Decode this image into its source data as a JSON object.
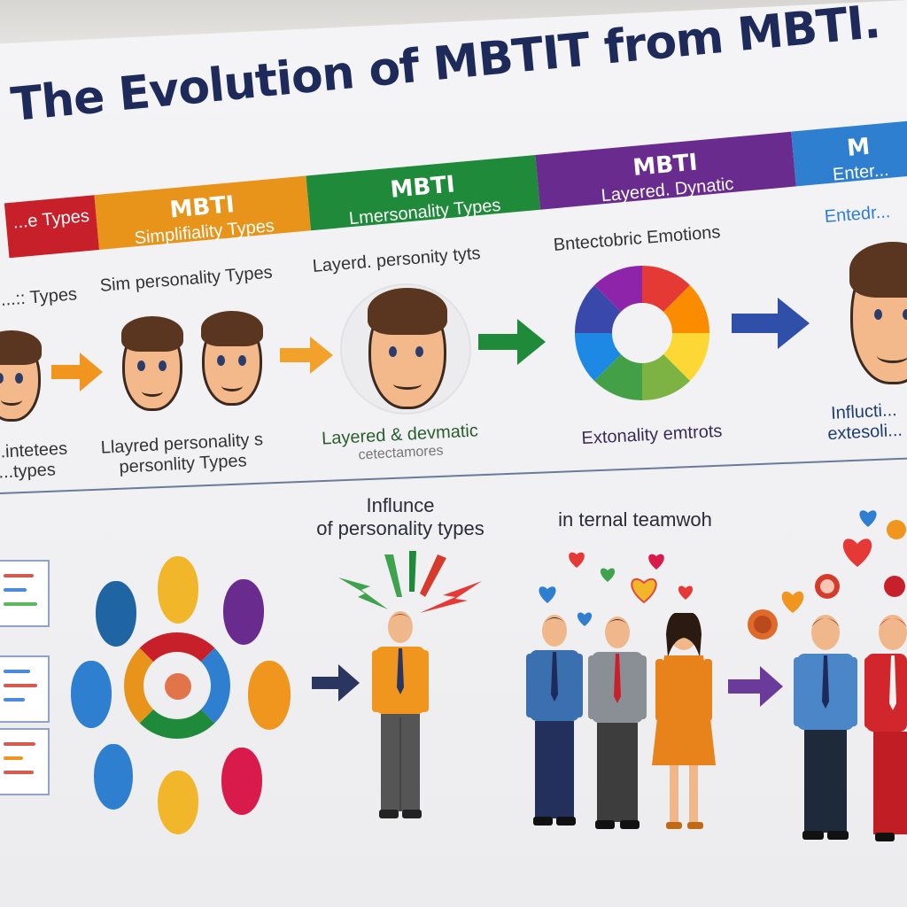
{
  "title": "The Evolution of MBTIT from MBTI.",
  "stages": [
    {
      "heading": "",
      "subheading": "...e Types",
      "color": "#c8202a"
    },
    {
      "heading": "MBTI",
      "subheading": "Simplifiality Types",
      "color": "#e8941a"
    },
    {
      "heading": "MBTI",
      "subheading": "Lmersonality Types",
      "color": "#1f8a3a"
    },
    {
      "heading": "MBTI",
      "subheading": "Layered. Dynatic",
      "color": "#6a2b8e"
    },
    {
      "heading": "M",
      "subheading": "Enter...",
      "color": "#2f7fd0"
    }
  ],
  "stage_sublabels": [
    "...:: Types",
    "Sim personality Types",
    "Layerd. personity tyts",
    "Bntectobric Emotions",
    "Entedr..."
  ],
  "stage_captions": [
    {
      "line1": "...intetees",
      "line2": "...types"
    },
    {
      "line1": "Llayred personality s",
      "line2": "personlity Types"
    },
    {
      "line1": "Layered & devmatic",
      "line2": "cetectamores"
    },
    {
      "line1": "Extonality emtrots",
      "line2": ""
    },
    {
      "line1": "Influcti...",
      "line2": "extesoli..."
    }
  ],
  "lower_labels": {
    "influence_line1": "Influnce",
    "influence_line2": "of personality types",
    "teamwork": "in ternal teamwoh"
  },
  "colors": {
    "title": "#1d2a5a",
    "red": "#c8202a",
    "orange": "#e8941a",
    "green": "#1f8a3a",
    "purple": "#6a2b8e",
    "blue": "#2f7fd0",
    "navy_arrow": "#2a3560"
  },
  "icons": [
    "arrow-right-icon",
    "color-wheel-icon",
    "lightning-icon",
    "heart-icon",
    "face-icon",
    "mask-icon",
    "document-icon",
    "person-icon"
  ]
}
